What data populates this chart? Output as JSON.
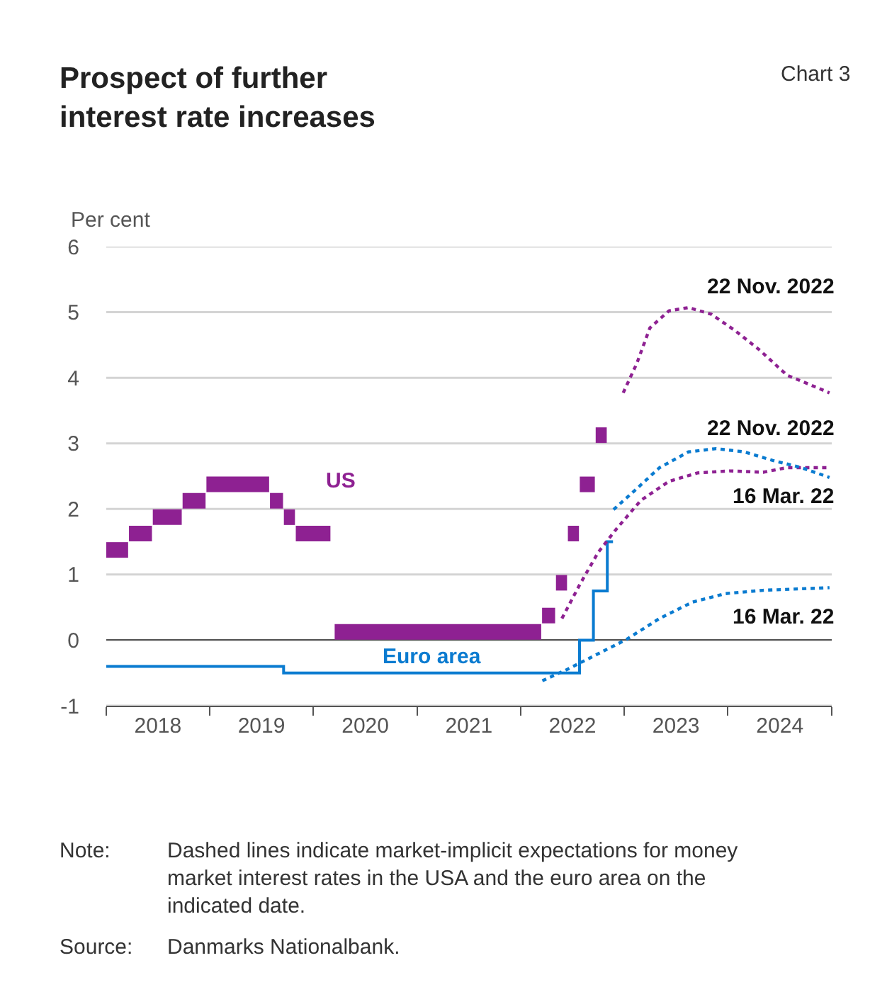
{
  "chart_data": {
    "type": "line",
    "title": "Prospect of further interest rate increases",
    "ylabel": "Per cent",
    "annotations": [
      "Chart 3",
      "Note: Dashed lines indicate market-implicit expectations for money market interest rates in the USA and the euro area on the indicated date.",
      "Source: Danmarks Nationalbank."
    ],
    "xlim": [
      "2018-01-01",
      "2025-01-01"
    ],
    "xticks": [
      {
        "value": "2018-01-01",
        "label": null
      },
      {
        "value": "2018-07-02",
        "label": "2018"
      },
      {
        "value": "2019-01-01",
        "label": null
      },
      {
        "value": "2019-07-02",
        "label": "2019"
      },
      {
        "value": "2020-01-01",
        "label": null
      },
      {
        "value": "2020-07-02",
        "label": "2020"
      },
      {
        "value": "2021-01-01",
        "label": null
      },
      {
        "value": "2021-07-02",
        "label": "2021"
      },
      {
        "value": "2022-01-01",
        "label": null
      },
      {
        "value": "2022-07-02",
        "label": "2022"
      },
      {
        "value": "2023-01-01",
        "label": null
      },
      {
        "value": "2023-07-02",
        "label": "2023"
      },
      {
        "value": "2024-01-01",
        "label": null
      },
      {
        "value": "2024-07-02",
        "label": "2024"
      },
      {
        "value": "2025-01-01",
        "label": null
      }
    ],
    "ylim": [
      -1,
      6
    ],
    "yticks": [
      -1,
      0,
      1,
      2,
      3,
      4,
      5,
      6
    ],
    "grid": "y",
    "series": [
      {
        "name": "US",
        "type": "line",
        "color": "#8e2192",
        "line_style": "solid",
        "x": [
          "2018-01-01",
          "2018-03-19",
          "2018-03-22",
          "2018-06-11",
          "2018-06-14",
          "2018-09-24",
          "2018-09-27",
          "2018-12-17",
          "2018-12-20",
          "2019-07-29",
          "2019-08-01",
          "2019-09-16",
          "2019-09-19",
          "2019-10-28",
          "2019-10-31",
          "2020-03-01",
          "2020-03-16",
          "2022-03-14",
          "2022-03-17",
          "2022-05-02",
          "2022-05-05",
          "2022-06-13",
          "2022-06-16",
          "2022-07-25",
          "2022-07-28",
          "2022-09-19",
          "2022-09-22",
          "2022-10-31"
        ],
        "values": [
          1.375,
          1.375,
          1.625,
          1.625,
          1.875,
          1.875,
          2.125,
          2.125,
          2.375,
          2.375,
          2.125,
          2.125,
          1.875,
          1.875,
          1.625,
          1.625,
          0.125,
          0.125,
          0.375,
          0.375,
          0.875,
          0.875,
          1.625,
          1.625,
          2.375,
          2.375,
          3.125,
          3.125
        ]
      },
      {
        "name": "Euro area",
        "type": "step",
        "color": "#0a7bd0",
        "line_style": "solid",
        "x": [
          "2018-01-01",
          "2019-09-18",
          "2022-07-27",
          "2022-09-14",
          "2022-11-02",
          "2022-11-22"
        ],
        "values": [
          -0.4,
          -0.5,
          0,
          0.75,
          1.5,
          1.5
        ]
      },
      {
        "name": "16 Mar. 22",
        "color": "#8e2192",
        "line_style": "dotted",
        "x": [
          "2022-05-26",
          "2022-07-27",
          "2022-10-01",
          "2022-12-05",
          "2023-02-28",
          "2023-06-07",
          "2023-09-16",
          "2024-01-08",
          "2024-05-04",
          "2024-07-27",
          "2024-12-24"
        ],
        "values": [
          0.33,
          0.84,
          1.34,
          1.7,
          2.13,
          2.42,
          2.55,
          2.58,
          2.56,
          2.63,
          2.63
        ]
      },
      {
        "name": "22 Nov. 2022",
        "color": "#8e2192",
        "line_style": "dotted",
        "x": [
          "2022-12-28",
          "2023-02-14",
          "2023-04-01",
          "2023-06-07",
          "2023-08-15",
          "2023-11-03",
          "2024-01-26",
          "2024-04-20",
          "2024-07-27",
          "2024-10-19",
          "2024-12-24"
        ],
        "values": [
          3.77,
          4.22,
          4.76,
          5.02,
          5.07,
          4.97,
          4.72,
          4.43,
          4.04,
          3.89,
          3.77
        ]
      },
      {
        "name": "22 Nov. 2022",
        "color": "#0a7bd0",
        "line_style": "dotted",
        "x": [
          "2022-11-24",
          "2023-02-14",
          "2023-05-05",
          "2023-08-15",
          "2023-11-21",
          "2024-02-28",
          "2024-06-07",
          "2024-09-16",
          "2024-12-24"
        ],
        "values": [
          1.99,
          2.31,
          2.63,
          2.87,
          2.92,
          2.87,
          2.74,
          2.63,
          2.48
        ]
      },
      {
        "name": "16 Mar. 22",
        "color": "#0a7bd0",
        "line_style": "dotted",
        "x": [
          "2022-03-18",
          "2022-06-07",
          "2022-09-16",
          "2023-01-08",
          "2023-05-05",
          "2023-08-29",
          "2023-12-24",
          "2024-05-04",
          "2024-12-24"
        ],
        "values": [
          -0.62,
          -0.46,
          -0.24,
          0.01,
          0.33,
          0.58,
          0.71,
          0.76,
          0.8
        ]
      }
    ]
  }
}
